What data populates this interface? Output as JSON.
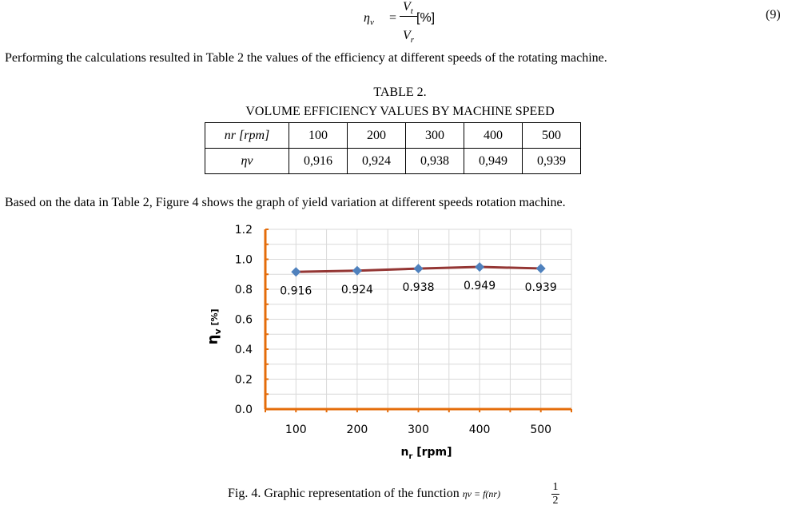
{
  "equation": {
    "lhs_symbol": "η",
    "lhs_sub": "v",
    "equals": "=",
    "numerator": "V",
    "numerator_sub": "t",
    "denominator": "V",
    "denominator_sub": "r",
    "unit": "[%]",
    "number": "(9)"
  },
  "paragraph1": "Performing the calculations resulted in Table 2 the values of the efficiency at different speeds of the rotating machine.",
  "table": {
    "title_line1": "TABLE 2.",
    "title_line2": "VOLUME EFFICIENCY VALUES BY MACHINE SPEED",
    "row1_head": "nr  [rpm]",
    "row2_head": "ηv",
    "speeds": [
      "100",
      "200",
      "300",
      "400",
      "500"
    ],
    "efficiencies": [
      "0,916",
      "0,924",
      "0,938",
      "0,949",
      "0,939"
    ]
  },
  "paragraph2": "Based on the data in Table 2, Figure 4 shows the graph of yield variation at different speeds rotation machine.",
  "chart_data": {
    "type": "line",
    "x": [
      100,
      200,
      300,
      400,
      500
    ],
    "series": [
      {
        "values": [
          0.916,
          0.924,
          0.938,
          0.949,
          0.939
        ]
      }
    ],
    "data_labels": [
      "0.916",
      "0.924",
      "0.938",
      "0.949",
      "0.939"
    ],
    "y_ticks": [
      "0.0",
      "0.2",
      "0.4",
      "0.6",
      "0.8",
      "1.0",
      "1.2"
    ],
    "x_ticks": [
      "100",
      "200",
      "300",
      "400",
      "500"
    ],
    "xlabel_main": "n",
    "xlabel_sub": "r",
    "xlabel_unit": "[rpm]",
    "ylabel_main": "η",
    "ylabel_sub": "v",
    "ylabel_unit": "[%]",
    "ylim": [
      0,
      1.2
    ],
    "xlim": [
      100,
      500
    ],
    "grid": true,
    "colors": {
      "line": "#943634",
      "marker": "#4f81bd",
      "axis": "#e46c0a",
      "grid": "#d9d9d9"
    }
  },
  "caption": {
    "text": "Fig. 4. Graphic representation of the function",
    "formula": "ηv = f(nr)",
    "frac_num": "1",
    "frac_den": "2"
  }
}
